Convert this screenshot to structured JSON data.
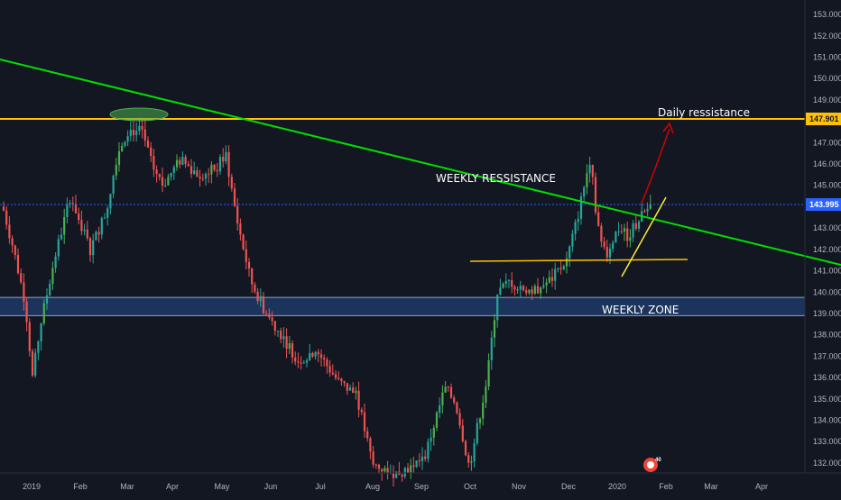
{
  "chart_data": {
    "type": "candlestick",
    "y_axis": {
      "range": [
        131.7,
        153.3
      ],
      "ticks": [
        "153.000",
        "152.000",
        "151.000",
        "150.000",
        "149.000",
        "148.000",
        "147.000",
        "146.000",
        "145.000",
        "144.000",
        "143.000",
        "142.000",
        "141.000",
        "140.000",
        "139.000",
        "138.000",
        "137.000",
        "136.000",
        "135.000",
        "134.000",
        "133.000",
        "132.000"
      ]
    },
    "x_axis": {
      "labels": [
        "2019",
        "Feb",
        "Mar",
        "Apr",
        "May",
        "Jun",
        "Jul",
        "Aug",
        "Sep",
        "Oct",
        "Nov",
        "Dec",
        "2020",
        "Feb",
        "Mar",
        "Apr"
      ]
    },
    "price_tags": [
      {
        "value": "147.901",
        "color": "#ffc107"
      },
      {
        "value": "143.995",
        "color": "#2962ff"
      }
    ],
    "levels": {
      "horizontal_resistance": 147.9,
      "current_price": 143.995,
      "weekly_zone": [
        138.9,
        139.75
      ]
    },
    "annotations": {
      "daily": "Daily ressistance",
      "weekly_res": "WEEKLY RESSISTANCE",
      "weekly_zone": "WEEKLY ZONE"
    },
    "colors": {
      "background": "#131722",
      "up": "#26a69a",
      "up_bright": "#4caf50",
      "down": "#ef5350",
      "resistance": "#ffc107",
      "trendline": "#00e000",
      "zone": "#1f3a66",
      "arrow": "#d50000"
    },
    "trend": "Jan-2019 ~144.0 → Jun ~138.5 → Aug low ~131.8 → Oct rally ~141 → Dec ~146.8 → Jan-2020 ~144.2",
    "grid": false,
    "legend": "none"
  }
}
